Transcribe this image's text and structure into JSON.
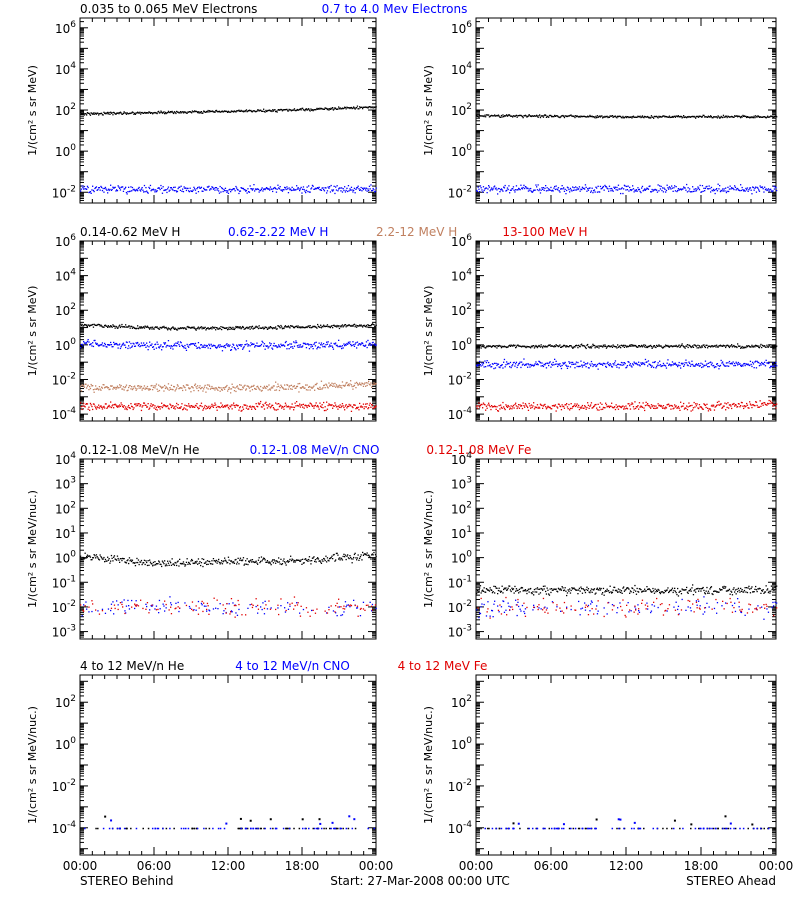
{
  "colors": {
    "black": "#000000",
    "blue": "#0000ff",
    "tan": "#c08060",
    "red": "#e00000",
    "background": "#ffffff"
  },
  "footer": {
    "left_label": "STEREO Behind",
    "center_label": "Start: 27-Mar-2008 00:00 UTC",
    "right_label": "STEREO Ahead"
  },
  "time_ticks": [
    "00:00",
    "06:00",
    "12:00",
    "18:00",
    "00:00"
  ],
  "rows": [
    {
      "legends": [
        {
          "text": "0.035 to 0.065 MeV Electrons",
          "color": "black"
        },
        {
          "text": "0.7 to 4.0 Mev Electrons",
          "color": "blue"
        }
      ],
      "ylabel": "1/(cm² s sr MeV)",
      "y_ticks": [
        "10^-2",
        "10^0",
        "10^2",
        "10^4",
        "10^6"
      ]
    },
    {
      "legends": [
        {
          "text": "0.14-0.62 MeV H",
          "color": "black"
        },
        {
          "text": "0.62-2.22 MeV H",
          "color": "blue"
        },
        {
          "text": "2.2-12 MeV H",
          "color": "tan"
        },
        {
          "text": "13-100 MeV H",
          "color": "red"
        }
      ],
      "ylabel": "1/(cm² s sr MeV)",
      "y_ticks": [
        "10^-4",
        "10^-2",
        "10^0",
        "10^2",
        "10^4",
        "10^6"
      ]
    },
    {
      "legends": [
        {
          "text": "0.12-1.08 MeV/n He",
          "color": "black"
        },
        {
          "text": "0.12-1.08 MeV/n CNO",
          "color": "blue"
        },
        {
          "text": "0.12-1.08 MeV Fe",
          "color": "red"
        }
      ],
      "ylabel": "1/(cm² s sr MeV/nuc.)",
      "y_ticks": [
        "10^-3",
        "10^-2",
        "10^-1",
        "10^0",
        "10^1",
        "10^2",
        "10^3",
        "10^4"
      ]
    },
    {
      "legends": [
        {
          "text": "4 to 12 MeV/n He",
          "color": "black"
        },
        {
          "text": "4 to 12 MeV/n CNO",
          "color": "blue"
        },
        {
          "text": "4 to 12 MeV Fe",
          "color": "red"
        }
      ],
      "ylabel": "1/(cm² s sr MeV/nuc.)",
      "y_ticks": [
        "10^-4",
        "10^-2",
        "10^0",
        "10^2"
      ]
    }
  ],
  "chart_data": [
    {
      "type": "scatter",
      "panel": "STEREO Behind",
      "ylog": true,
      "ylim": [
        0.003,
        3000000
      ],
      "xlim": [
        0,
        24
      ],
      "series": [
        {
          "name": "0.035 to 0.065 MeV Electrons",
          "color": "black",
          "x": [
            0,
            6,
            12,
            18,
            24
          ],
          "y": [
            70,
            80,
            90,
            110,
            150
          ]
        },
        {
          "name": "0.7 to 4.0 Mev Electrons",
          "color": "blue",
          "x": [
            0,
            6,
            12,
            18,
            24
          ],
          "y": [
            0.015,
            0.015,
            0.015,
            0.015,
            0.015
          ]
        }
      ]
    },
    {
      "type": "scatter",
      "panel": "STEREO Ahead",
      "ylog": true,
      "ylim": [
        0.003,
        3000000
      ],
      "xlim": [
        0,
        24
      ],
      "series": [
        {
          "name": "0.035 to 0.065 MeV Electrons",
          "color": "black",
          "x": [
            0,
            6,
            12,
            18,
            24
          ],
          "y": [
            55,
            55,
            50,
            50,
            50
          ]
        },
        {
          "name": "0.7 to 4.0 Mev Electrons",
          "color": "blue",
          "x": [
            0,
            6,
            12,
            18,
            24
          ],
          "y": [
            0.015,
            0.015,
            0.015,
            0.015,
            0.015
          ]
        }
      ]
    },
    {
      "type": "scatter",
      "panel": "STEREO Behind",
      "ylog": true,
      "ylim": [
        4e-05,
        1000000
      ],
      "xlim": [
        0,
        24
      ],
      "series": [
        {
          "name": "0.14-0.62 MeV H",
          "color": "black",
          "x": [
            0,
            6,
            12,
            18,
            24
          ],
          "y": [
            15,
            10,
            10,
            12,
            15
          ]
        },
        {
          "name": "0.62-2.22 MeV H",
          "color": "blue",
          "x": [
            0,
            6,
            12,
            18,
            24
          ],
          "y": [
            1.2,
            1.0,
            0.9,
            1.0,
            1.2
          ]
        },
        {
          "name": "2.2-12 MeV H",
          "color": "tan",
          "x": [
            0,
            6,
            12,
            18,
            24
          ],
          "y": [
            0.004,
            0.0035,
            0.0035,
            0.004,
            0.006
          ]
        },
        {
          "name": "13-100 MeV H",
          "color": "red",
          "x": [
            0,
            6,
            12,
            18,
            24
          ],
          "y": [
            0.0003,
            0.0003,
            0.0003,
            0.0003,
            0.0003
          ]
        }
      ]
    },
    {
      "type": "scatter",
      "panel": "STEREO Ahead",
      "ylog": true,
      "ylim": [
        4e-05,
        1000000
      ],
      "xlim": [
        0,
        24
      ],
      "series": [
        {
          "name": "0.14-0.62 MeV H",
          "color": "black",
          "x": [
            0,
            6,
            12,
            18,
            24
          ],
          "y": [
            0.9,
            0.9,
            0.9,
            0.9,
            0.9
          ]
        },
        {
          "name": "0.62-2.22 MeV H",
          "color": "blue",
          "x": [
            0,
            6,
            12,
            18,
            24
          ],
          "y": [
            0.08,
            0.08,
            0.08,
            0.08,
            0.08
          ]
        },
        {
          "name": "13-100 MeV H",
          "color": "red",
          "x": [
            0,
            6,
            12,
            18,
            24
          ],
          "y": [
            0.0003,
            0.0003,
            0.0003,
            0.0003,
            0.0004
          ]
        }
      ]
    },
    {
      "type": "scatter",
      "panel": "STEREO Behind",
      "ylog": true,
      "ylim": [
        0.0005,
        10000
      ],
      "xlim": [
        0,
        24
      ],
      "series": [
        {
          "name": "0.12-1.08 MeV/n He",
          "color": "black",
          "x": [
            0,
            6,
            12,
            18,
            24
          ],
          "y": [
            1.2,
            0.6,
            0.7,
            0.8,
            1.3
          ]
        },
        {
          "name": "0.12-1.08 MeV/n CNO",
          "color": "blue",
          "x": [
            0,
            6,
            12,
            18,
            24
          ],
          "y": [
            0.01,
            0.01,
            0.01,
            0.01,
            0.01
          ]
        },
        {
          "name": "0.12-1.08 MeV Fe",
          "color": "red",
          "x": [
            0,
            6,
            12,
            18,
            24
          ],
          "y": [
            0.01,
            0.01,
            0.01,
            0.01,
            0.01
          ]
        }
      ]
    },
    {
      "type": "scatter",
      "panel": "STEREO Ahead",
      "ylog": true,
      "ylim": [
        0.0005,
        10000
      ],
      "xlim": [
        0,
        24
      ],
      "series": [
        {
          "name": "0.12-1.08 MeV/n He",
          "color": "black",
          "x": [
            0,
            6,
            12,
            18,
            24
          ],
          "y": [
            0.05,
            0.05,
            0.05,
            0.05,
            0.05
          ]
        },
        {
          "name": "0.12-1.08 MeV/n CNO",
          "color": "blue",
          "x": [
            0,
            6,
            12,
            18,
            24
          ],
          "y": [
            0.01,
            0.01,
            0.01,
            0.01,
            0.01
          ]
        },
        {
          "name": "0.12-1.08 MeV Fe",
          "color": "red",
          "x": [
            0,
            6,
            12,
            18,
            24
          ],
          "y": [
            0.01,
            0.01,
            0.01,
            0.01,
            0.01
          ]
        }
      ]
    },
    {
      "type": "scatter",
      "panel": "STEREO Behind",
      "ylog": true,
      "ylim": [
        5e-06,
        2000
      ],
      "xlim": [
        0,
        24
      ],
      "series": [
        {
          "name": "4 to 12 MeV/n He",
          "color": "black",
          "x": [
            0,
            6,
            12,
            18,
            24
          ],
          "y": [
            0.0001,
            0.0001,
            0.0001,
            0.0001,
            0.0001
          ]
        },
        {
          "name": "4 to 12 MeV/n CNO",
          "color": "blue",
          "x": [
            0,
            6,
            12,
            18,
            24
          ],
          "y": [
            0.0001,
            0.0001,
            0.0001,
            0.0001,
            0.0001
          ]
        }
      ]
    },
    {
      "type": "scatter",
      "panel": "STEREO Ahead",
      "ylog": true,
      "ylim": [
        5e-06,
        2000
      ],
      "xlim": [
        0,
        24
      ],
      "series": [
        {
          "name": "4 to 12 MeV/n He",
          "color": "black",
          "x": [
            0,
            6,
            12,
            18,
            24
          ],
          "y": [
            0.0001,
            0.0001,
            0.0001,
            0.0001,
            0.0001
          ]
        },
        {
          "name": "4 to 12 MeV/n CNO",
          "color": "blue",
          "x": [
            0,
            6,
            12,
            18,
            24
          ],
          "y": [
            0.0001,
            0.0001,
            0.0001,
            0.0001,
            0.0001
          ]
        }
      ]
    }
  ]
}
